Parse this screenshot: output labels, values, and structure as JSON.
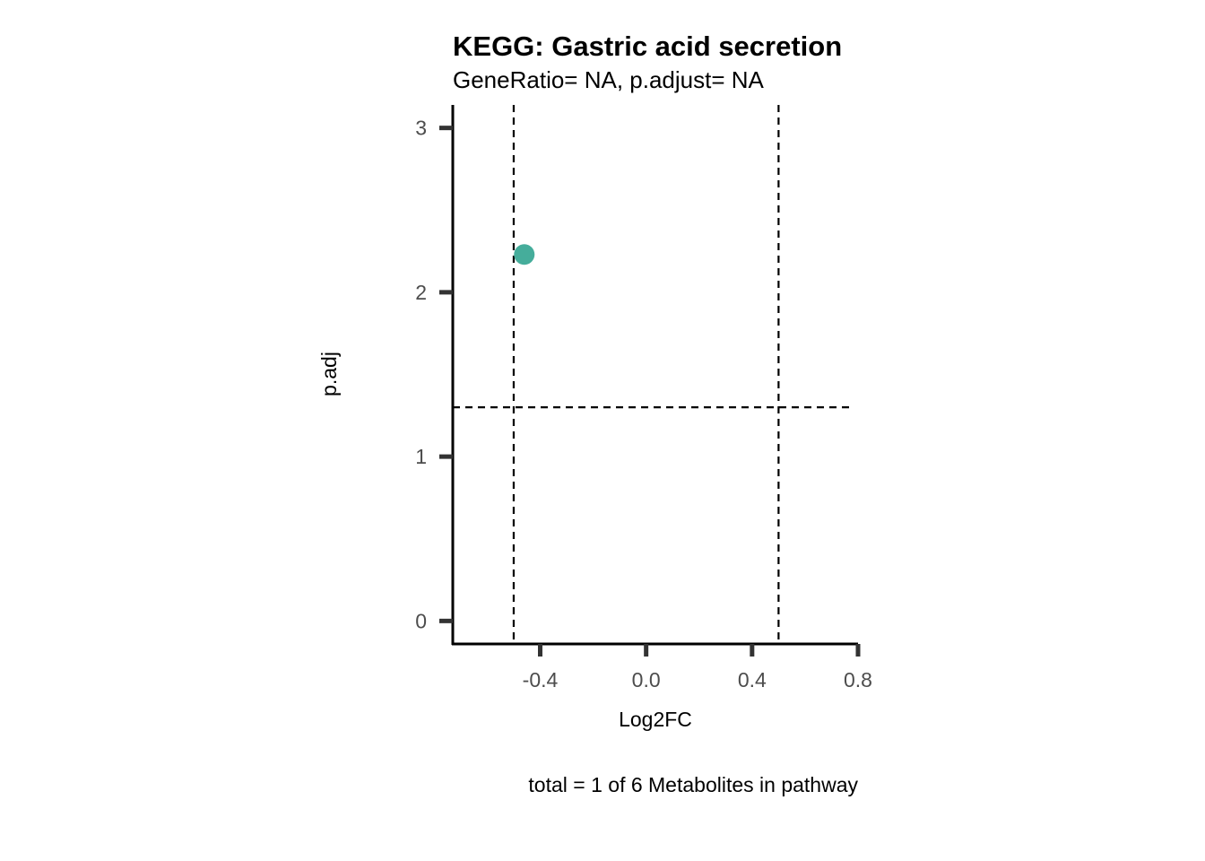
{
  "chart_data": {
    "type": "scatter",
    "title": "KEGG: Gastric acid secretion",
    "subtitle": "GeneRatio= NA, p.adjust= NA",
    "xlabel": "Log2FC",
    "ylabel": "p.adj",
    "caption": "total = 1 of 6 Metabolites in pathway",
    "xlim": [
      -0.73,
      0.8
    ],
    "ylim": [
      -0.14,
      3.14
    ],
    "x_ticks": [
      -0.4,
      0.0,
      0.4,
      0.8
    ],
    "x_tick_labels": [
      "-0.4",
      "0.0",
      "0.4",
      "0.8"
    ],
    "y_ticks": [
      0,
      1,
      2,
      3
    ],
    "y_tick_labels": [
      "0",
      "1",
      "2",
      "3"
    ],
    "grid": false,
    "reference_lines": {
      "vertical": [
        -0.5,
        0.5
      ],
      "horizontal": [
        1.3
      ]
    },
    "points": [
      {
        "x": -0.46,
        "y": 2.23,
        "color": "#45ad9b"
      }
    ]
  }
}
